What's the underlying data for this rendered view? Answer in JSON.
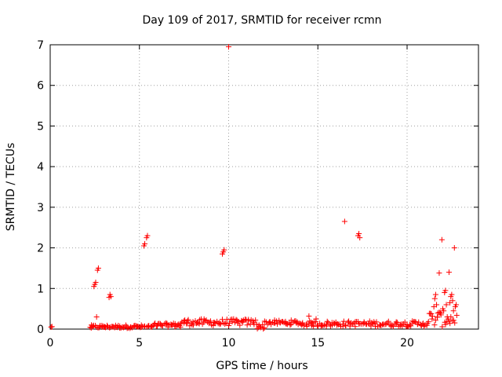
{
  "chart_data": {
    "type": "scatter",
    "title": "Day 109 of 2017, SRMTID for receiver rcmn",
    "xlabel": "GPS time / hours",
    "ylabel": "SRMTID / TECUs",
    "xlim": [
      0,
      24
    ],
    "ylim": [
      0,
      7
    ],
    "xticks": [
      0,
      5,
      10,
      15,
      20
    ],
    "yticks": [
      0,
      1,
      2,
      3,
      4,
      5,
      6,
      7
    ],
    "xtick_labels": [
      "0",
      "5",
      "10",
      "15",
      "20"
    ],
    "ytick_labels": [
      "0",
      "1",
      "2",
      "3",
      "4",
      "5",
      "6",
      "7"
    ],
    "grid": true,
    "marker": "plus",
    "color": "#ff0000",
    "series": [
      {
        "name": "SRMTID",
        "points": [
          [
            0.05,
            0.05
          ],
          [
            0.1,
            0.06
          ],
          [
            2.3,
            0.03
          ],
          [
            2.4,
            0.06
          ],
          [
            2.45,
            1.05
          ],
          [
            2.5,
            1.1
          ],
          [
            2.55,
            1.15
          ],
          [
            2.6,
            0.3
          ],
          [
            2.65,
            1.45
          ],
          [
            2.7,
            1.5
          ],
          [
            2.8,
            0.08
          ],
          [
            2.9,
            0.05
          ],
          [
            3.0,
            0.07
          ],
          [
            3.1,
            0.04
          ],
          [
            3.2,
            0.06
          ],
          [
            3.3,
            0.78
          ],
          [
            3.35,
            0.85
          ],
          [
            3.4,
            0.8
          ],
          [
            3.5,
            0.06
          ],
          [
            3.7,
            0.05
          ],
          [
            3.9,
            0.07
          ],
          [
            4.1,
            0.04
          ],
          [
            4.3,
            0.06
          ],
          [
            4.5,
            0.05
          ],
          [
            4.7,
            0.08
          ],
          [
            4.9,
            0.06
          ],
          [
            5.1,
            0.05
          ],
          [
            5.25,
            2.05
          ],
          [
            5.3,
            2.1
          ],
          [
            5.4,
            2.25
          ],
          [
            5.45,
            2.3
          ],
          [
            5.5,
            0.07
          ],
          [
            5.7,
            0.05
          ],
          [
            6.0,
            0.08
          ],
          [
            6.2,
            0.1
          ],
          [
            6.5,
            0.12
          ],
          [
            6.8,
            0.1
          ],
          [
            7.0,
            0.13
          ],
          [
            7.3,
            0.05
          ],
          [
            7.5,
            0.15
          ],
          [
            7.7,
            0.2
          ],
          [
            8.0,
            0.18
          ],
          [
            8.3,
            0.15
          ],
          [
            8.6,
            0.17
          ],
          [
            8.9,
            0.14
          ],
          [
            9.2,
            0.16
          ],
          [
            9.5,
            0.12
          ],
          [
            9.65,
            1.85
          ],
          [
            9.7,
            1.9
          ],
          [
            9.75,
            1.95
          ],
          [
            9.9,
            0.15
          ],
          [
            10.0,
            6.95
          ],
          [
            10.2,
            0.18
          ],
          [
            10.5,
            0.15
          ],
          [
            10.8,
            0.17
          ],
          [
            11.1,
            0.2
          ],
          [
            11.4,
            0.16
          ],
          [
            11.7,
            0.1
          ],
          [
            12.0,
            0.03
          ],
          [
            12.3,
            0.18
          ],
          [
            12.6,
            0.15
          ],
          [
            12.9,
            0.16
          ],
          [
            13.2,
            0.14
          ],
          [
            13.5,
            0.12
          ],
          [
            13.8,
            0.15
          ],
          [
            14.1,
            0.1
          ],
          [
            14.4,
            0.12
          ],
          [
            14.5,
            0.32
          ],
          [
            14.7,
            0.15
          ],
          [
            14.9,
            0.25
          ],
          [
            15.2,
            0.1
          ],
          [
            15.5,
            0.12
          ],
          [
            15.8,
            0.1
          ],
          [
            16.1,
            0.13
          ],
          [
            16.4,
            0.12
          ],
          [
            16.5,
            2.65
          ],
          [
            16.8,
            0.12
          ],
          [
            17.1,
            0.18
          ],
          [
            17.25,
            2.3
          ],
          [
            17.3,
            2.35
          ],
          [
            17.35,
            2.25
          ],
          [
            17.6,
            0.15
          ],
          [
            17.9,
            0.12
          ],
          [
            18.2,
            0.14
          ],
          [
            18.5,
            0.1
          ],
          [
            18.8,
            0.12
          ],
          [
            19.1,
            0.1
          ],
          [
            19.4,
            0.13
          ],
          [
            19.7,
            0.12
          ],
          [
            20.0,
            0.1
          ],
          [
            20.3,
            0.15
          ],
          [
            20.6,
            0.12
          ],
          [
            20.9,
            0.14
          ],
          [
            21.2,
            0.18
          ],
          [
            21.4,
            0.25
          ],
          [
            21.5,
            0.55
          ],
          [
            21.55,
            0.75
          ],
          [
            21.6,
            0.85
          ],
          [
            21.65,
            0.6
          ],
          [
            21.7,
            0.3
          ],
          [
            21.8,
            1.38
          ],
          [
            21.85,
            0.4
          ],
          [
            21.9,
            0.35
          ],
          [
            21.95,
            2.2
          ],
          [
            22.0,
            0.5
          ],
          [
            22.1,
            0.9
          ],
          [
            22.15,
            0.95
          ],
          [
            22.2,
            0.6
          ],
          [
            22.25,
            0.3
          ],
          [
            22.3,
            0.25
          ],
          [
            22.35,
            1.4
          ],
          [
            22.4,
            0.65
          ],
          [
            22.45,
            0.8
          ],
          [
            22.5,
            0.85
          ],
          [
            22.55,
            0.7
          ],
          [
            22.6,
            0.45
          ],
          [
            22.65,
            2.0
          ],
          [
            22.7,
            0.55
          ],
          [
            22.75,
            0.6
          ]
        ],
        "band": {
          "x_start": 2.2,
          "x_end": 22.8,
          "segments": [
            {
              "x": [
                2.2,
                5.8
              ],
              "y": [
                0.02,
                0.1
              ]
            },
            {
              "x": [
                5.8,
                7.3
              ],
              "y": [
                0.05,
                0.15
              ]
            },
            {
              "x": [
                7.3,
                11.6
              ],
              "y": [
                0.08,
                0.25
              ]
            },
            {
              "x": [
                11.6,
                12.0
              ],
              "y": [
                0.0,
                0.12
              ]
            },
            {
              "x": [
                12.0,
                14.0
              ],
              "y": [
                0.1,
                0.22
              ]
            },
            {
              "x": [
                14.0,
                21.2
              ],
              "y": [
                0.06,
                0.2
              ]
            },
            {
              "x": [
                21.2,
                22.8
              ],
              "y": [
                0.05,
                0.45
              ]
            }
          ]
        }
      }
    ]
  }
}
